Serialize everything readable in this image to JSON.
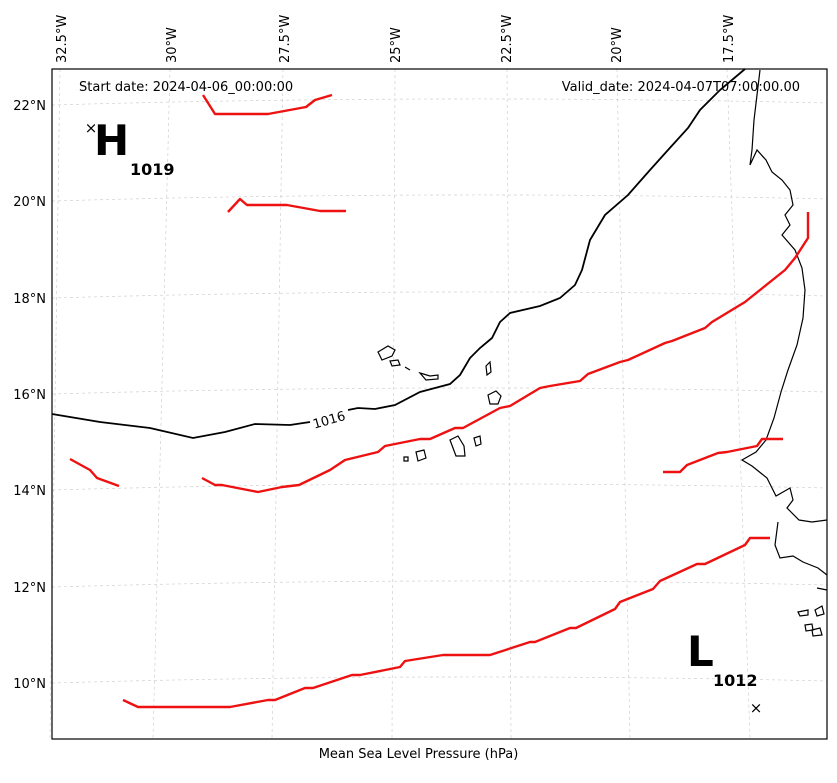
{
  "map": {
    "start_date_label": "Start date: 2024-04-06_00:00:00",
    "valid_date_label": "Valid_date: 2024-04-07T07:00:00.00",
    "caption": "Mean Sea Level Pressure (hPa)",
    "lon_labels": [
      "32.5°W",
      "30°W",
      "27.5°W",
      "25°W",
      "22.5°W",
      "20°W",
      "17.5°W"
    ],
    "lat_labels": [
      "22°N",
      "20°N",
      "18°N",
      "16°N",
      "14°N",
      "12°N",
      "10°N"
    ],
    "high": {
      "letter": "H",
      "value": "1019",
      "marker": "×"
    },
    "low": {
      "letter": "L",
      "value": "1012",
      "marker": "×"
    },
    "contour_label": "1016",
    "colors": {
      "isobar": "#000000",
      "red_contour": "#ee1111",
      "grid": "#d0d0d0",
      "coast": "#000000"
    }
  }
}
